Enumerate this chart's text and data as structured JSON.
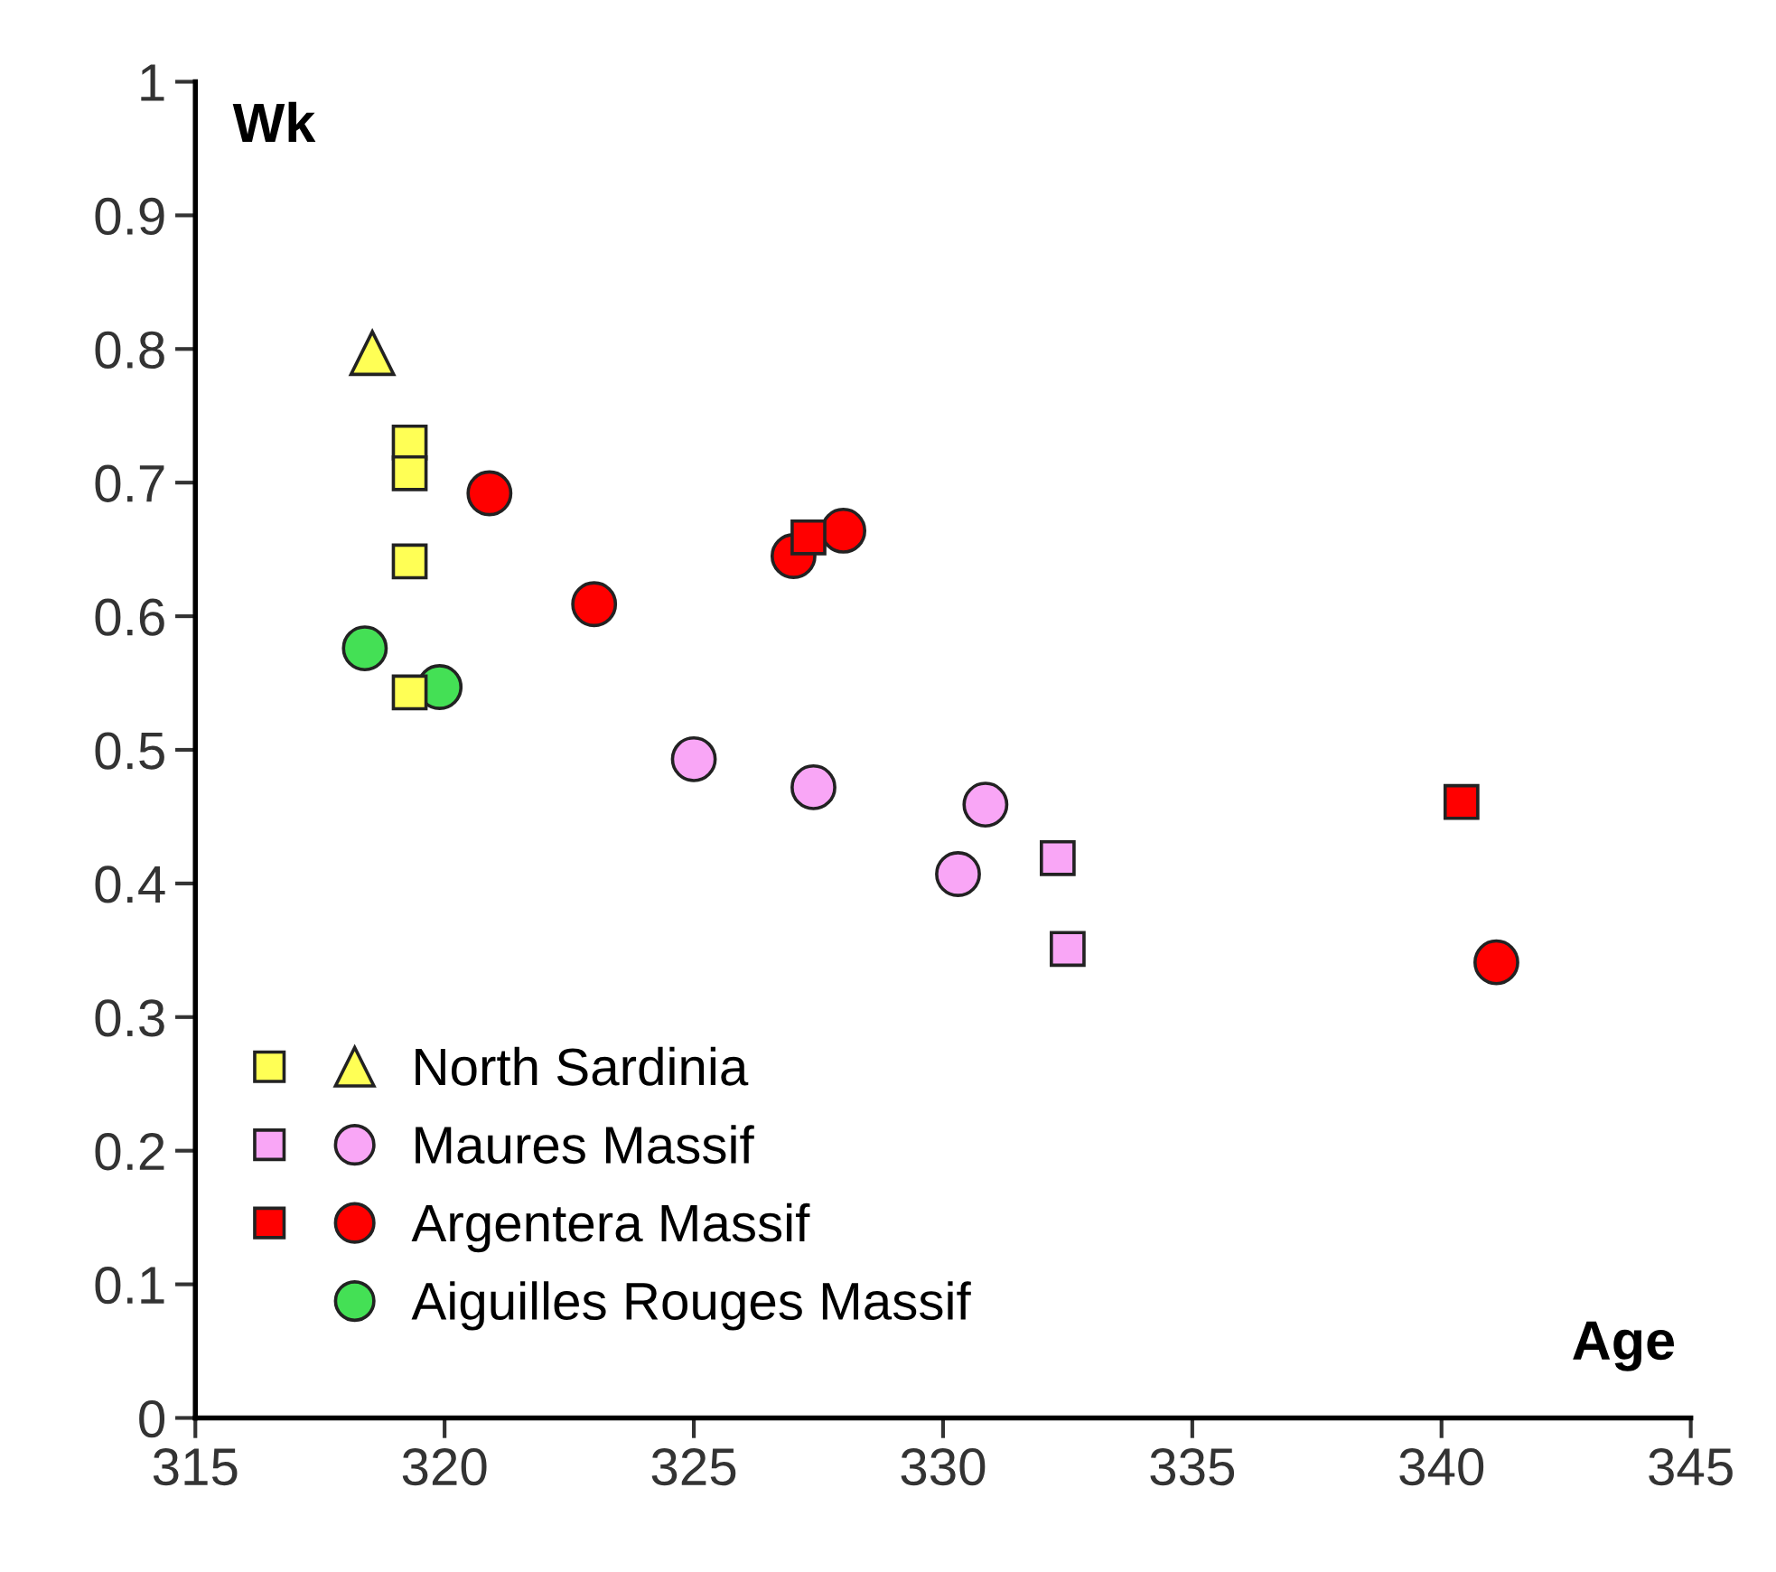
{
  "chart_data": {
    "type": "scatter",
    "xlabel": "Age",
    "ylabel": "Wk",
    "xlim": [
      315,
      345
    ],
    "xticks": [
      315,
      320,
      325,
      330,
      335,
      340,
      345
    ],
    "ylim": [
      0,
      1
    ],
    "yticks": [
      0,
      0.1,
      0.2,
      0.3,
      0.4,
      0.5,
      0.6,
      0.7,
      0.8,
      0.9,
      1
    ],
    "grid": false,
    "legend": "bottom left",
    "series": [
      {
        "color": "#ffff55",
        "marker": "square",
        "x": [
          319.3,
          319.3,
          319.3,
          319.3
        ],
        "values": [
          0.73,
          0.707,
          0.641,
          0.543
        ]
      },
      {
        "name": "North Sardinia",
        "color": "#ffff55",
        "marker": "triangle",
        "x": [
          318.55
        ],
        "values": [
          0.797
        ]
      },
      {
        "color": "#f9a6f6",
        "marker": "square",
        "x": [
          332.3,
          332.5
        ],
        "values": [
          0.419,
          0.351
        ]
      },
      {
        "name": "Maures Massif",
        "color": "#f9a6f6",
        "marker": "circle",
        "x": [
          325.0,
          327.4,
          330.85,
          330.3
        ],
        "values": [
          0.493,
          0.472,
          0.459,
          0.407
        ]
      },
      {
        "color": "#ff0000",
        "marker": "square",
        "x": [
          327.3,
          340.4
        ],
        "values": [
          0.659,
          0.461
        ]
      },
      {
        "name": "Argentera Massif",
        "color": "#ff0000",
        "marker": "circle",
        "x": [
          320.9,
          323.0,
          327.0,
          328.0,
          341.1
        ],
        "values": [
          0.692,
          0.609,
          0.645,
          0.664,
          0.341
        ]
      },
      {
        "name": "Aiguilles Rouges Massif",
        "color": "#44e055",
        "marker": "circle",
        "x": [
          318.4,
          319.9
        ],
        "values": [
          0.576,
          0.547
        ]
      }
    ]
  }
}
